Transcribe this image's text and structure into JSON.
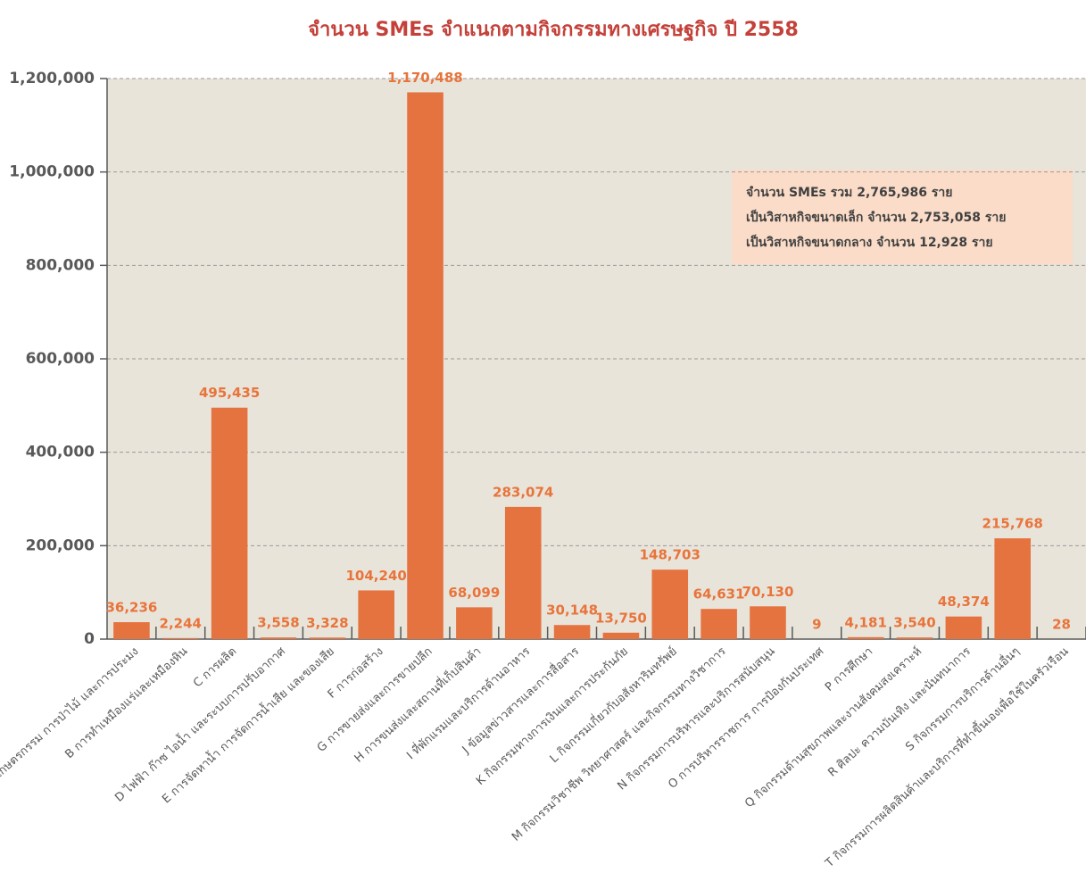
{
  "chart_data": {
    "type": "bar",
    "title": "จำนวน SMEs จำแนกตามกิจกรรมทางเศรษฐกิจ ปี 2558",
    "categories": [
      "A เกษตรกรรม การป่าไม้ และการประมง",
      "B การทำเหมืองแร่และเหมืองหิน",
      "C การผลิต",
      "D ไฟฟ้า ก๊าซ ไอน้ำ และระบบการปรับอากาศ",
      "E การจัดหาน้ำ การจัดการน้ำเสีย และของเสีย",
      "F การก่อสร้าง",
      "G การขายส่งและการขายปลีก",
      "H การขนส่งและสถานที่เก็บสินค้า",
      "I ที่พักแรมและบริการด้านอาหาร",
      "J ข้อมูลข่าวสารและการสื่อสาร",
      "K กิจกรรมทางการเงินและการประกันภัย",
      "L กิจกรรมเกี่ยวกับอสังหาริมทรัพย์",
      "M กิจกรรมวิชาชีพ วิทยาศาสตร์ และกิจกรรมทางวิชาการ",
      "N กิจกรรมการบริหารและบริการสนับสนุน",
      "O การบริหารราชการ การป้องกันประเทศ",
      "P การศึกษา",
      "Q กิจกรรมด้านสุขภาพและงานสังคมสงเคราะห์",
      "R ศิลปะ ความบันเทิง และนันทนาการ",
      "S กิจกรรมการบริการด้านอื่นๆ",
      "T กิจกรรมการผลิตสินค้าและบริการที่ทำขึ้นเองเพื่อใช้ในครัวเรือน"
    ],
    "values": [
      36236,
      2244,
      495435,
      3558,
      3328,
      104240,
      1170488,
      68099,
      283074,
      30148,
      13750,
      148703,
      64631,
      70130,
      9,
      4181,
      3540,
      48374,
      215768,
      28
    ],
    "value_labels": [
      "36,236",
      "2,244",
      "495,435",
      "3,558",
      "3,328",
      "104,240",
      "1,170,488",
      "68,099",
      "283,074",
      "30,148",
      "13,750",
      "148,703",
      "64,631",
      "70,130",
      "9",
      "4,181",
      "3,540",
      "48,374",
      "215,768",
      "28"
    ],
    "color": "#e57340",
    "ylim": [
      0,
      1200000
    ],
    "yticks": [
      0,
      {
        "value": 200000,
        "label": "200,000"
      },
      {
        "value": 400000,
        "label": "400,000"
      },
      {
        "value": 600000,
        "label": "600,000"
      },
      {
        "value": 800000,
        "label": "800,000"
      },
      {
        "value": 1000000,
        "label": "1,000,000"
      },
      {
        "value": 1200000,
        "label": "1,200,000"
      }
    ],
    "grid": true,
    "annotations": [
      "จำนวน SMEs รวม 2,765,986 ราย",
      "เป็นวิสาหกิจขนาดเล็ก จำนวน 2,753,058 ราย",
      "เป็นวิสาหกิจขนาดกลาง จำนวน 12,928 ราย"
    ]
  }
}
